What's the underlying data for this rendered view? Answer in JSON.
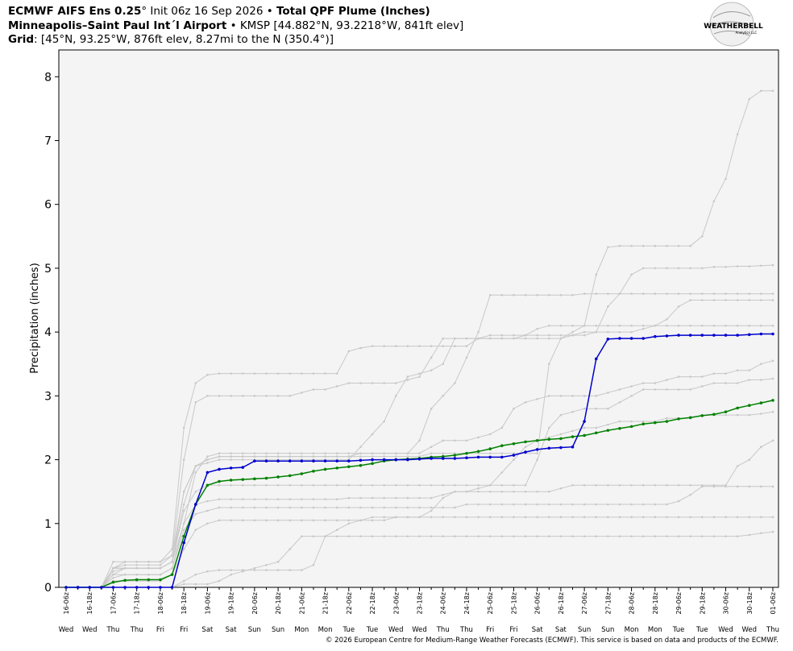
{
  "chart_data": {
    "type": "line",
    "title_model": "ECMWF AIFS Ens 0.25",
    "title_init": "° Init 06z 16 Sep 2026 •",
    "title_product": "Total QPF Plume (Inches)",
    "station_name": "Minneapolis–Saint Paul Int´l Airport",
    "station_info": "• KMSP [44.882°N, 93.2218°W, 841ft elev]",
    "grid_label": "Grid",
    "grid_info": ": [45°N, 93.25°W, 876ft elev, 8.27mi to the N (350.4°)]",
    "logo": "WEATHERBELL",
    "logo_sub": "Analytics LLC",
    "y_label": "Precipitation (inches)",
    "footer": "© 2026 European Centre for Medium-Range Weather Forecasts (ECMWF). This service is based on data and products of the ECMWF.",
    "ylim": [
      0,
      8.42
    ],
    "yticks": [
      0,
      1,
      2,
      3,
      4,
      5,
      6,
      7,
      8
    ],
    "grid": false,
    "categories": [
      "16-06z",
      null,
      "16-18z",
      null,
      "17-06z",
      null,
      "17-18z",
      null,
      "18-06z",
      null,
      "18-18z",
      null,
      "19-06z",
      null,
      "19-18z",
      null,
      "20-06z",
      null,
      "20-18z",
      null,
      "21-06z",
      null,
      "21-18z",
      null,
      "22-06z",
      null,
      "22-18z",
      null,
      "23-06z",
      null,
      "23-18z",
      null,
      "24-06z",
      null,
      "24-18z",
      null,
      "25-06z",
      null,
      "25-18z",
      null,
      "26-06z",
      null,
      "26-18z",
      null,
      "27-06z",
      null,
      "27-18z",
      null,
      "28-06z",
      null,
      "28-18z",
      null,
      "29-06z",
      null,
      "29-18z",
      null,
      "30-06z",
      null,
      "30-18z",
      null,
      "01-06z"
    ],
    "weekdays": [
      "Wed",
      "Wed",
      "Thu",
      "Thu",
      "Fri",
      "Fri",
      "Sat",
      "Sat",
      "Sun",
      "Sun",
      "Mon",
      "Mon",
      "Tue",
      "Tue",
      "Wed",
      "Wed",
      "Thu",
      "Thu",
      "Fri",
      "Fri",
      "Sat",
      "Sat",
      "Sun",
      "Sun",
      "Mon",
      "Mon",
      "Tue",
      "Tue",
      "Wed",
      "Wed",
      "Thu"
    ],
    "series": [
      {
        "color": "#c8c8c8",
        "values": [
          0,
          0,
          0,
          0,
          0.3,
          0.35,
          0.35,
          0.35,
          0.35,
          0.5,
          1.5,
          1.9,
          2.0,
          2.05,
          2.05,
          2.05,
          2.05,
          2.05,
          2.05,
          2.05,
          2.05,
          2.05,
          2.05,
          2.05,
          2.05,
          2.05,
          2.05,
          2.05,
          2.05,
          2.05,
          2.05,
          2.1,
          2.1,
          2.1,
          2.1,
          2.1,
          2.1,
          2.1,
          2.1,
          2.1,
          2.1,
          3.5,
          3.9,
          4.0,
          4.1,
          4.9,
          5.33,
          5.35,
          5.35,
          5.35,
          5.35,
          5.35,
          5.35,
          5.35,
          5.5,
          6.05,
          6.4,
          7.1,
          7.65,
          7.78,
          7.78
        ]
      },
      {
        "color": "#c8c8c8",
        "values": [
          0,
          0,
          0,
          0,
          0.4,
          0.4,
          0.4,
          0.4,
          0.4,
          0.6,
          2.5,
          3.2,
          3.33,
          3.35,
          3.35,
          3.35,
          3.35,
          3.35,
          3.35,
          3.35,
          3.35,
          3.35,
          3.35,
          3.35,
          3.7,
          3.75,
          3.78,
          3.78,
          3.78,
          3.78,
          3.78,
          3.78,
          3.78,
          3.78,
          3.78,
          3.9,
          3.95,
          3.95,
          3.95,
          3.95,
          3.95,
          3.95,
          3.95,
          3.95,
          3.95,
          4.0,
          4.4,
          4.6,
          4.9,
          5.0,
          5.0,
          5.0,
          5.0,
          5.0,
          5.0,
          5.02,
          5.02,
          5.03,
          5.03,
          5.04,
          5.05
        ]
      },
      {
        "color": "#c8c8c8",
        "values": [
          0,
          0,
          0,
          0,
          0.2,
          0.2,
          0.2,
          0.2,
          0.2,
          0.3,
          1.0,
          1.8,
          2.05,
          2.1,
          2.1,
          2.1,
          2.1,
          2.1,
          2.1,
          2.1,
          2.1,
          2.1,
          2.1,
          2.1,
          2.1,
          2.1,
          2.1,
          2.1,
          2.1,
          2.1,
          2.3,
          2.8,
          3.0,
          3.2,
          3.6,
          4.0,
          4.58,
          4.58,
          4.58,
          4.58,
          4.58,
          4.58,
          4.58,
          4.58,
          4.6,
          4.6,
          4.6,
          4.6,
          4.6,
          4.6,
          4.6,
          4.6,
          4.6,
          4.6,
          4.6,
          4.6,
          4.6,
          4.6,
          4.6,
          4.6,
          4.6
        ]
      },
      {
        "color": "#c8c8c8",
        "values": [
          0,
          0,
          0,
          0,
          0.3,
          0.4,
          0.4,
          0.4,
          0.4,
          0.5,
          2.0,
          2.9,
          3.0,
          3.0,
          3.0,
          3.0,
          3.0,
          3.0,
          3.0,
          3.0,
          3.05,
          3.1,
          3.1,
          3.15,
          3.2,
          3.2,
          3.2,
          3.2,
          3.2,
          3.25,
          3.3,
          3.6,
          3.9,
          3.9,
          3.9,
          3.9,
          3.9,
          3.9,
          3.9,
          3.9,
          3.9,
          3.9,
          3.9,
          3.95,
          4.0,
          4.0,
          4.0,
          4.0,
          4.0,
          4.05,
          4.1,
          4.2,
          4.4,
          4.5,
          4.5,
          4.5,
          4.5,
          4.5,
          4.5,
          4.5,
          4.5
        ]
      },
      {
        "color": "#c8c8c8",
        "values": [
          0,
          0,
          0,
          0,
          0.2,
          0.3,
          0.3,
          0.3,
          0.3,
          0.4,
          1.2,
          1.5,
          1.6,
          1.6,
          1.6,
          1.6,
          1.6,
          1.6,
          1.6,
          1.6,
          1.6,
          1.6,
          1.6,
          1.6,
          1.6,
          1.6,
          1.6,
          1.6,
          1.6,
          1.6,
          1.6,
          1.6,
          1.6,
          1.6,
          1.6,
          1.6,
          1.6,
          1.6,
          1.6,
          1.6,
          2.0,
          2.5,
          2.7,
          2.75,
          2.8,
          2.8,
          2.8,
          2.9,
          3.0,
          3.1,
          3.1,
          3.1,
          3.1,
          3.1,
          3.15,
          3.2,
          3.2,
          3.2,
          3.25,
          3.25,
          3.27
        ]
      },
      {
        "color": "#c8c8c8",
        "values": [
          0,
          0,
          0,
          0,
          0.1,
          0.1,
          0.1,
          0.1,
          0.1,
          0.2,
          0.6,
          0.9,
          1.0,
          1.05,
          1.05,
          1.05,
          1.05,
          1.05,
          1.05,
          1.05,
          1.05,
          1.05,
          1.05,
          1.05,
          1.05,
          1.05,
          1.05,
          1.05,
          1.1,
          1.1,
          1.1,
          1.1,
          1.1,
          1.1,
          1.1,
          1.1,
          1.1,
          1.1,
          1.1,
          1.1,
          1.1,
          1.1,
          1.1,
          1.1,
          1.1,
          1.1,
          1.1,
          1.1,
          1.1,
          1.1,
          1.1,
          1.1,
          1.1,
          1.1,
          1.1,
          1.1,
          1.1,
          1.1,
          1.1,
          1.1,
          1.1
        ]
      },
      {
        "color": "#c8c8c8",
        "values": [
          0,
          0,
          0,
          0,
          0,
          0,
          0,
          0,
          0,
          0,
          0.05,
          0.05,
          0.05,
          0.1,
          0.2,
          0.25,
          0.3,
          0.35,
          0.4,
          0.6,
          0.8,
          0.8,
          0.8,
          0.8,
          0.8,
          0.8,
          0.8,
          0.8,
          0.8,
          0.8,
          0.8,
          0.8,
          0.8,
          0.8,
          0.8,
          0.8,
          0.8,
          0.8,
          0.8,
          0.8,
          0.8,
          0.8,
          0.8,
          0.8,
          0.8,
          0.8,
          0.8,
          0.8,
          0.8,
          0.8,
          0.8,
          0.8,
          0.8,
          0.8,
          0.8,
          0.8,
          0.8,
          0.8,
          0.82,
          0.85,
          0.87
        ]
      },
      {
        "color": "#c8c8c8",
        "values": [
          0,
          0,
          0,
          0,
          0,
          0,
          0,
          0,
          0,
          0,
          0.1,
          0.2,
          0.25,
          0.27,
          0.27,
          0.27,
          0.27,
          0.27,
          0.27,
          0.27,
          0.27,
          0.35,
          0.8,
          0.9,
          1.0,
          1.05,
          1.1,
          1.1,
          1.1,
          1.1,
          1.1,
          1.2,
          1.4,
          1.5,
          1.5,
          1.5,
          1.5,
          1.5,
          1.5,
          1.5,
          1.5,
          1.5,
          1.55,
          1.6,
          1.6,
          1.6,
          1.6,
          1.6,
          1.6,
          1.6,
          1.6,
          1.6,
          1.6,
          1.6,
          1.6,
          1.6,
          1.6,
          1.9,
          2.0,
          2.2,
          2.3
        ]
      },
      {
        "color": "#c8c8c8",
        "values": [
          0,
          0,
          0,
          0,
          0.3,
          0.3,
          0.3,
          0.3,
          0.3,
          0.4,
          1.0,
          1.3,
          1.35,
          1.38,
          1.38,
          1.38,
          1.38,
          1.38,
          1.38,
          1.38,
          1.38,
          1.38,
          1.38,
          1.38,
          1.4,
          1.4,
          1.4,
          1.4,
          1.4,
          1.4,
          1.4,
          1.4,
          1.45,
          1.5,
          1.5,
          1.55,
          1.6,
          1.8,
          2.0,
          2.2,
          2.3,
          2.35,
          2.4,
          2.45,
          2.5,
          2.5,
          2.55,
          2.6,
          2.6,
          2.6,
          2.6,
          2.65,
          2.65,
          2.65,
          2.7,
          2.7,
          2.7,
          2.7,
          2.7,
          2.72,
          2.75
        ]
      },
      {
        "color": "#c8c8c8",
        "values": [
          0,
          0,
          0,
          0,
          0.25,
          0.3,
          0.3,
          0.3,
          0.3,
          0.4,
          1.3,
          1.9,
          2.0,
          2.05,
          2.05,
          2.05,
          2.05,
          2.05,
          2.05,
          2.05,
          2.05,
          2.05,
          2.05,
          2.05,
          2.05,
          2.1,
          2.1,
          2.1,
          2.1,
          2.1,
          2.1,
          2.2,
          2.3,
          2.3,
          2.3,
          2.35,
          2.4,
          2.5,
          2.8,
          2.9,
          2.95,
          3.0,
          3.0,
          3.0,
          3.0,
          3.0,
          3.05,
          3.1,
          3.15,
          3.2,
          3.2,
          3.25,
          3.3,
          3.3,
          3.3,
          3.35,
          3.35,
          3.4,
          3.4,
          3.5,
          3.55
        ]
      },
      {
        "color": "#c8c8c8",
        "values": [
          0,
          0,
          0,
          0,
          0.15,
          0.2,
          0.2,
          0.2,
          0.2,
          0.3,
          0.9,
          1.15,
          1.2,
          1.25,
          1.25,
          1.25,
          1.25,
          1.25,
          1.25,
          1.25,
          1.25,
          1.25,
          1.25,
          1.25,
          1.25,
          1.25,
          1.25,
          1.25,
          1.25,
          1.25,
          1.25,
          1.25,
          1.25,
          1.25,
          1.3,
          1.3,
          1.3,
          1.3,
          1.3,
          1.3,
          1.3,
          1.3,
          1.3,
          1.3,
          1.3,
          1.3,
          1.3,
          1.3,
          1.3,
          1.3,
          1.3,
          1.3,
          1.35,
          1.45,
          1.58,
          1.58,
          1.58,
          1.58,
          1.58,
          1.58,
          1.58
        ]
      },
      {
        "color": "#c8c8c8",
        "values": [
          0,
          0,
          0,
          0,
          0.3,
          0.3,
          0.3,
          0.3,
          0.3,
          0.4,
          1.5,
          1.9,
          1.95,
          2.0,
          2.0,
          2.0,
          2.0,
          2.0,
          2.0,
          2.0,
          2.0,
          2.0,
          2.0,
          2.0,
          2.0,
          2.2,
          2.4,
          2.6,
          3.0,
          3.3,
          3.35,
          3.4,
          3.5,
          3.9,
          3.9,
          3.9,
          3.9,
          3.9,
          3.9,
          3.95,
          4.05,
          4.1,
          4.1,
          4.1,
          4.1,
          4.1,
          4.1,
          4.1,
          4.1,
          4.1,
          4.1,
          4.1,
          4.1,
          4.1,
          4.1,
          4.1,
          4.1,
          4.1,
          4.1,
          4.1,
          4.1
        ]
      },
      {
        "color": "#008000",
        "values": [
          0,
          0,
          0,
          0,
          0.08,
          0.11,
          0.12,
          0.12,
          0.12,
          0.2,
          0.8,
          1.3,
          1.6,
          1.66,
          1.68,
          1.69,
          1.7,
          1.71,
          1.73,
          1.75,
          1.78,
          1.82,
          1.85,
          1.87,
          1.89,
          1.91,
          1.94,
          1.98,
          2.0,
          2.01,
          2.02,
          2.04,
          2.05,
          2.07,
          2.1,
          2.13,
          2.17,
          2.22,
          2.25,
          2.28,
          2.3,
          2.32,
          2.33,
          2.36,
          2.38,
          2.42,
          2.46,
          2.49,
          2.52,
          2.56,
          2.58,
          2.6,
          2.64,
          2.66,
          2.69,
          2.71,
          2.75,
          2.81,
          2.85,
          2.89,
          2.93
        ]
      },
      {
        "color": "#0000cc",
        "values": [
          0,
          0,
          0,
          0,
          0,
          0,
          0,
          0,
          0,
          0,
          0.7,
          1.3,
          1.8,
          1.85,
          1.87,
          1.88,
          1.98,
          1.98,
          1.98,
          1.98,
          1.98,
          1.98,
          1.98,
          1.98,
          1.98,
          1.99,
          2.0,
          2.0,
          2.0,
          2.0,
          2.01,
          2.02,
          2.02,
          2.02,
          2.03,
          2.04,
          2.04,
          2.04,
          2.07,
          2.12,
          2.16,
          2.18,
          2.19,
          2.2,
          2.6,
          3.58,
          3.89,
          3.9,
          3.9,
          3.9,
          3.93,
          3.94,
          3.95,
          3.95,
          3.95,
          3.95,
          3.95,
          3.95,
          3.96,
          3.97,
          3.97
        ]
      }
    ]
  }
}
